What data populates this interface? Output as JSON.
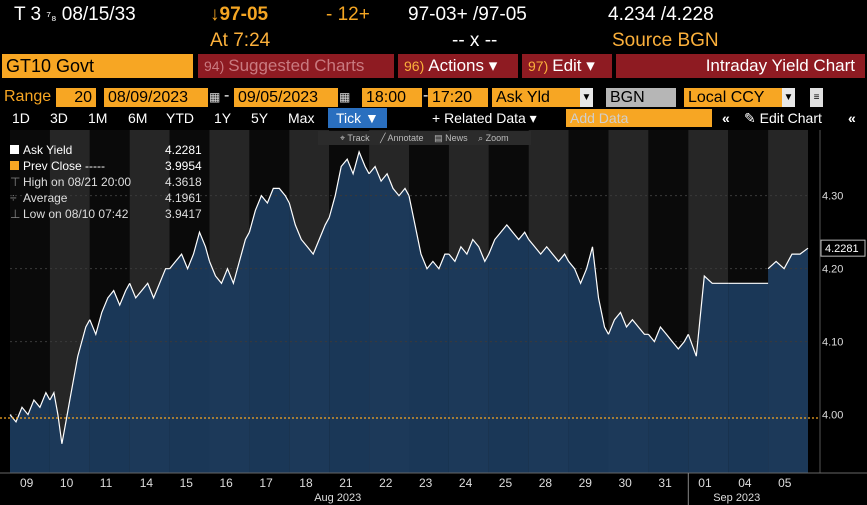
{
  "header": {
    "security": "T 3",
    "coupon_fraction": "⁷₈",
    "maturity": "08/15/33",
    "price_arrow": "↓",
    "price": "97-05",
    "change": "- 12+",
    "bid_ask": "97-03+ /97-05",
    "yields": "4.234 /4.228",
    "time_label": "At 7:24",
    "cross": "-- x --",
    "source": "Source BGN"
  },
  "titlebar": {
    "ticker": "GT10 Govt",
    "suggested": {
      "num": "94)",
      "label": "Suggested Charts"
    },
    "actions": {
      "num": "96)",
      "label": "Actions ▾"
    },
    "edit": {
      "num": "97)",
      "label": "Edit ▾"
    },
    "title": "Intraday Yield Chart"
  },
  "range": {
    "label": "Range",
    "days": "20",
    "start": "08/09/2023",
    "dash": "-",
    "end": "09/05/2023",
    "start_time": "18:00",
    "end_time": "17:20",
    "field": "Ask Yld",
    "source": "BGN",
    "currency": "Local CCY"
  },
  "toolbar": {
    "periods": [
      "1D",
      "3D",
      "1M",
      "6M",
      "YTD",
      "1Y",
      "5Y",
      "Max"
    ],
    "tick": "Tick ▼",
    "related": "+ Related Data ▾",
    "add_placeholder": "Add Data",
    "edit_chart": "✎ Edit Chart",
    "tools": [
      "⌖ Track",
      "╱ Annotate",
      "▤ News",
      "⌕ Zoom"
    ]
  },
  "legend": [
    {
      "label": "Ask Yield",
      "value": "4.2281",
      "swatch": "#ffffff"
    },
    {
      "label": "Prev Close -----",
      "value": "3.9954",
      "swatch": "#f7a623"
    },
    {
      "label": "High on 08/21 20:00",
      "value": "4.3618",
      "swatch": "none"
    },
    {
      "label": "Average",
      "value": "4.1961",
      "swatch": "none"
    },
    {
      "label": "Low on 08/10 07:42",
      "value": "3.9417",
      "swatch": "none"
    }
  ],
  "chart_data": {
    "type": "area",
    "title": "Intraday Yield Chart",
    "series": [
      {
        "name": "Ask Yield",
        "color": "#ffffff",
        "fill": "#1b3a5c"
      }
    ],
    "categories": [
      "09",
      "10",
      "11",
      "14",
      "15",
      "16",
      "17",
      "18",
      "21",
      "22",
      "23",
      "24",
      "25",
      "28",
      "29",
      "30",
      "31",
      "01",
      "04",
      "05"
    ],
    "month_labels": [
      {
        "label": "Aug 2023",
        "at": "21"
      },
      {
        "label": "Sep 2023",
        "at": "04"
      }
    ],
    "y_ticks": [
      4.0,
      4.1,
      4.2,
      4.3
    ],
    "ylim": [
      3.92,
      4.39
    ],
    "last_value": "4.2281",
    "prev_close": 3.9954,
    "high": 4.3618,
    "average": 4.1961,
    "low": 3.9417,
    "days": [
      {
        "d": "09",
        "x": [
          0.0,
          0.15,
          0.3,
          0.45,
          0.6,
          0.75,
          0.9,
          1.0
        ],
        "y": [
          4.0,
          3.99,
          4.01,
          4.0,
          4.02,
          4.01,
          4.03,
          4.02
        ]
      },
      {
        "d": "10",
        "x": [
          1.0,
          1.1,
          1.2,
          1.3,
          1.4,
          1.5,
          1.6,
          1.7,
          1.8,
          1.9,
          2.0
        ],
        "y": [
          4.02,
          4.03,
          4.0,
          3.96,
          3.99,
          4.02,
          4.05,
          4.08,
          4.1,
          4.12,
          4.13
        ]
      },
      {
        "d": "11",
        "x": [
          2.0,
          2.15,
          2.3,
          2.45,
          2.6,
          2.75,
          2.9,
          3.0
        ],
        "y": [
          4.13,
          4.11,
          4.14,
          4.16,
          4.17,
          4.15,
          4.17,
          4.18
        ]
      },
      {
        "d": "14",
        "x": [
          3.0,
          3.15,
          3.3,
          3.45,
          3.6,
          3.75,
          3.9,
          4.0
        ],
        "y": [
          4.18,
          4.16,
          4.17,
          4.18,
          4.16,
          4.18,
          4.2,
          4.2
        ]
      },
      {
        "d": "15",
        "x": [
          4.0,
          4.15,
          4.3,
          4.45,
          4.6,
          4.75,
          4.9,
          5.0
        ],
        "y": [
          4.2,
          4.21,
          4.22,
          4.2,
          4.22,
          4.25,
          4.23,
          4.21
        ]
      },
      {
        "d": "16",
        "x": [
          5.0,
          5.15,
          5.3,
          5.45,
          5.6,
          5.75,
          5.9,
          6.0
        ],
        "y": [
          4.21,
          4.19,
          4.18,
          4.2,
          4.18,
          4.21,
          4.24,
          4.25
        ]
      },
      {
        "d": "17",
        "x": [
          6.0,
          6.15,
          6.3,
          6.45,
          6.6,
          6.75,
          6.9,
          7.0
        ],
        "y": [
          4.25,
          4.28,
          4.3,
          4.29,
          4.31,
          4.31,
          4.3,
          4.29
        ]
      },
      {
        "d": "18",
        "x": [
          7.0,
          7.15,
          7.3,
          7.45,
          7.6,
          7.75,
          7.9,
          8.0
        ],
        "y": [
          4.29,
          4.26,
          4.24,
          4.23,
          4.22,
          4.24,
          4.26,
          4.27
        ]
      },
      {
        "d": "21",
        "x": [
          8.0,
          8.15,
          8.3,
          8.45,
          8.6,
          8.75,
          8.9,
          9.0
        ],
        "y": [
          4.27,
          4.3,
          4.34,
          4.35,
          4.33,
          4.36,
          4.34,
          4.33
        ]
      },
      {
        "d": "22",
        "x": [
          9.0,
          9.15,
          9.3,
          9.45,
          9.6,
          9.75,
          9.9,
          10.0
        ],
        "y": [
          4.33,
          4.34,
          4.32,
          4.33,
          4.31,
          4.3,
          4.31,
          4.3
        ]
      },
      {
        "d": "23",
        "x": [
          10.0,
          10.15,
          10.3,
          10.45,
          10.6,
          10.75,
          10.9,
          11.0
        ],
        "y": [
          4.3,
          4.26,
          4.22,
          4.2,
          4.21,
          4.2,
          4.22,
          4.22
        ]
      },
      {
        "d": "24",
        "x": [
          11.0,
          11.15,
          11.3,
          11.45,
          11.6,
          11.75,
          11.9,
          12.0
        ],
        "y": [
          4.22,
          4.21,
          4.23,
          4.22,
          4.24,
          4.23,
          4.21,
          4.22
        ]
      },
      {
        "d": "25",
        "x": [
          12.0,
          12.15,
          12.3,
          12.45,
          12.6,
          12.75,
          12.9,
          13.0
        ],
        "y": [
          4.22,
          4.24,
          4.25,
          4.26,
          4.25,
          4.24,
          4.25,
          4.24
        ]
      },
      {
        "d": "28",
        "x": [
          13.0,
          13.15,
          13.3,
          13.45,
          13.6,
          13.75,
          13.9,
          14.0
        ],
        "y": [
          4.24,
          4.23,
          4.22,
          4.23,
          4.22,
          4.21,
          4.22,
          4.21
        ]
      },
      {
        "d": "29",
        "x": [
          14.0,
          14.15,
          14.3,
          14.45,
          14.6,
          14.75,
          14.9,
          15.0
        ],
        "y": [
          4.21,
          4.2,
          4.18,
          4.2,
          4.23,
          4.16,
          4.12,
          4.11
        ]
      },
      {
        "d": "30",
        "x": [
          15.0,
          15.15,
          15.3,
          15.45,
          15.6,
          15.75,
          15.9,
          16.0
        ],
        "y": [
          4.11,
          4.13,
          4.14,
          4.12,
          4.13,
          4.12,
          4.11,
          4.11
        ]
      },
      {
        "d": "31",
        "x": [
          16.0,
          16.15,
          16.3,
          16.45,
          16.6,
          16.75,
          16.9,
          17.0
        ],
        "y": [
          4.11,
          4.1,
          4.12,
          4.11,
          4.1,
          4.09,
          4.1,
          4.11
        ]
      },
      {
        "d": "01",
        "x": [
          17.0,
          17.2,
          17.4,
          17.6,
          17.8,
          18.0
        ],
        "y": [
          4.11,
          4.08,
          4.19,
          4.18,
          4.18,
          4.18
        ]
      },
      {
        "d": "04",
        "x": [
          18.0,
          19.0
        ],
        "y": [
          4.18,
          4.18
        ]
      },
      {
        "d": "05",
        "x": [
          19.0,
          19.2,
          19.4,
          19.6,
          19.8,
          20.0
        ],
        "y": [
          4.2,
          4.21,
          4.2,
          4.22,
          4.22,
          4.2281
        ]
      }
    ]
  }
}
